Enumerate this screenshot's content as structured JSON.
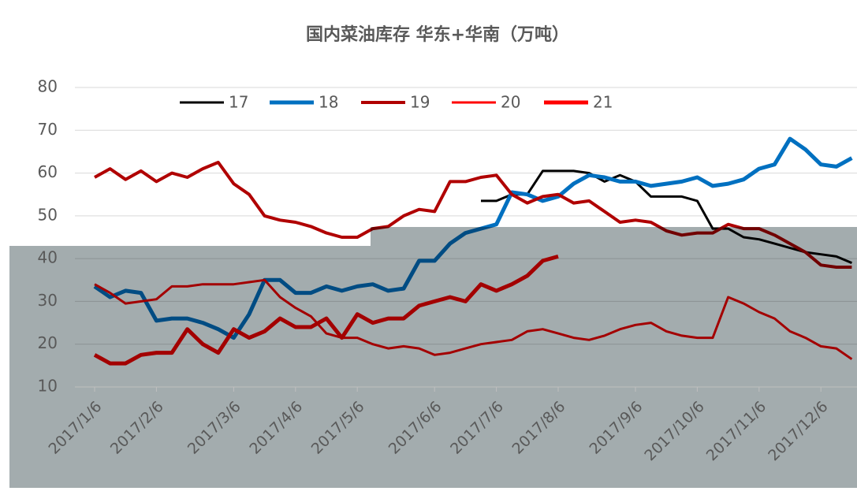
{
  "chart_data": {
    "type": "line",
    "title": "国内菜油库存 华东+华南（万吨）",
    "categories": [
      "2017/1/6",
      null,
      null,
      null,
      "2017/2/6",
      null,
      null,
      null,
      null,
      "2017/3/6",
      null,
      null,
      null,
      "2017/4/6",
      null,
      null,
      null,
      "2017/5/6",
      null,
      null,
      null,
      null,
      "2017/6/6",
      null,
      null,
      null,
      "2017/7/6",
      null,
      null,
      null,
      "2017/8/6",
      null,
      null,
      null,
      null,
      "2017/9/6",
      null,
      null,
      null,
      "2017/10/6",
      null,
      null,
      null,
      "2017/11/6",
      null,
      null,
      null,
      "2017/12/6",
      null,
      null
    ],
    "series": [
      {
        "name": "17",
        "color": "#000000",
        "values": [
          null,
          null,
          null,
          null,
          null,
          null,
          null,
          null,
          null,
          null,
          null,
          null,
          null,
          null,
          null,
          null,
          null,
          null,
          null,
          null,
          null,
          null,
          null,
          null,
          null,
          53.5,
          53.5,
          55,
          55,
          60.5,
          60.5,
          60.5,
          60,
          58,
          59.5,
          58,
          54.5,
          54.5,
          54.5,
          53.5,
          47,
          47,
          45,
          44.5,
          43.5,
          42.5,
          41.5,
          41,
          40.5,
          39
        ]
      },
      {
        "name": "18",
        "color": "#0070c0",
        "values": [
          33.5,
          31,
          32.5,
          32,
          25.5,
          26,
          26,
          25,
          23.5,
          21.5,
          27,
          35,
          35,
          32,
          32,
          33.5,
          32.5,
          33.5,
          34,
          32.5,
          33,
          39.5,
          39.5,
          43.5,
          46,
          47,
          48,
          55.5,
          55,
          53.5,
          54.5,
          57.5,
          59.5,
          59,
          58,
          58,
          57,
          57.5,
          58,
          59,
          57,
          57.5,
          58.5,
          61,
          62,
          68,
          65.5,
          62,
          61.5,
          63.5
        ]
      },
      {
        "name": "19",
        "color": "#b00000",
        "values": [
          59,
          61,
          58.5,
          60.5,
          58,
          60,
          59,
          61,
          62.5,
          57.5,
          55,
          50,
          49,
          48.5,
          47.5,
          46,
          45,
          45,
          47,
          47.5,
          50,
          51.5,
          51,
          58,
          58,
          59,
          59.5,
          55,
          53,
          54.5,
          55,
          53,
          53.5,
          51,
          48.5,
          49,
          48.5,
          46.5,
          45.5,
          46,
          46,
          48,
          47,
          47,
          45.5,
          43.5,
          41.5,
          38.5,
          38,
          38
        ]
      },
      {
        "name": "20",
        "color": "#ff0000",
        "values": [
          34,
          32,
          29.5,
          30,
          30.5,
          33.5,
          33.5,
          34,
          34,
          34,
          34.5,
          35,
          31,
          28.5,
          26.5,
          22.5,
          21.5,
          21.5,
          20,
          19,
          19.5,
          19,
          17.5,
          18,
          19,
          20,
          20.5,
          21,
          23,
          23.5,
          22.5,
          21.5,
          21,
          22,
          23.5,
          24.5,
          25,
          23,
          22,
          21.5,
          21.5,
          31,
          29.5,
          27.5,
          26,
          23,
          21.5,
          19.5,
          19,
          16.5
        ]
      },
      {
        "name": "21",
        "color": "#ff0000",
        "values": [
          17.5,
          15.5,
          15.5,
          17.5,
          18,
          18,
          23.5,
          20,
          18,
          23.5,
          21.5,
          23,
          26,
          24,
          24,
          26,
          21.5,
          27,
          25,
          26,
          26,
          29,
          30,
          31,
          30,
          34,
          32.5,
          34,
          36,
          39.5,
          40.5,
          null,
          null,
          null,
          null,
          null,
          null,
          null,
          null,
          null,
          null,
          null,
          null,
          null,
          null,
          null,
          null,
          null,
          null,
          null
        ]
      }
    ],
    "ylim": [
      10,
      80
    ],
    "yticks": [
      10,
      20,
      30,
      40,
      50,
      60,
      70,
      80
    ],
    "grid": true,
    "legend": "top"
  }
}
